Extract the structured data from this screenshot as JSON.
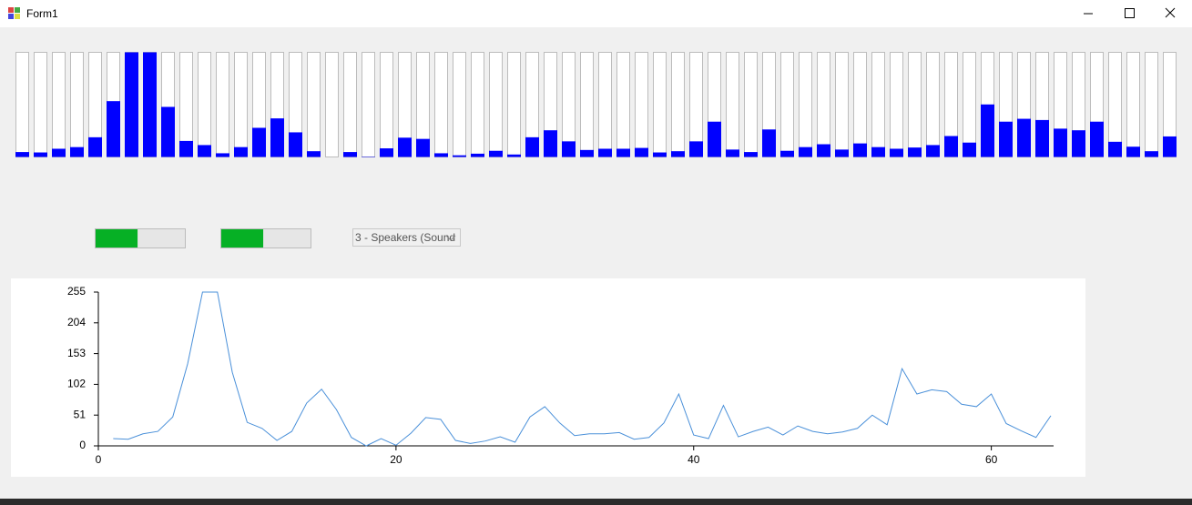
{
  "window": {
    "title": "Form1"
  },
  "device": "3 - Speakers (Sound",
  "levels": {
    "values": [
      47,
      47
    ],
    "max": 100
  },
  "chart_data": {
    "type": "line",
    "x": [
      1,
      2,
      3,
      4,
      5,
      6,
      7,
      8,
      9,
      10,
      11,
      12,
      13,
      14,
      15,
      16,
      17,
      18,
      19,
      20,
      21,
      22,
      23,
      24,
      25,
      26,
      27,
      28,
      29,
      30,
      31,
      32,
      33,
      34,
      35,
      36,
      37,
      38,
      39,
      40,
      41,
      42,
      43,
      44,
      45,
      46,
      47,
      48,
      49,
      50,
      51,
      52,
      53,
      54,
      55,
      56,
      57,
      58,
      59,
      60,
      61,
      62,
      63,
      64
    ],
    "values": [
      12,
      11,
      20,
      24,
      48,
      136,
      255,
      255,
      122,
      39,
      29,
      9,
      24,
      71,
      94,
      60,
      14,
      0,
      12,
      1,
      21,
      47,
      44,
      9,
      4,
      8,
      15,
      6,
      48,
      65,
      38,
      17,
      20,
      20,
      22,
      11,
      14,
      38,
      86,
      18,
      12,
      67,
      15,
      24,
      31,
      18,
      33,
      24,
      20,
      23,
      29,
      51,
      35,
      128,
      86,
      93,
      90,
      69,
      65,
      86,
      37,
      25,
      14,
      50
    ],
    "color": "#4a90d9",
    "xlim": [
      0,
      64
    ],
    "xticks": [
      0,
      20,
      40,
      60
    ],
    "ylim": [
      0,
      255
    ],
    "yticks": [
      0,
      51,
      102,
      153,
      204,
      255
    ]
  }
}
